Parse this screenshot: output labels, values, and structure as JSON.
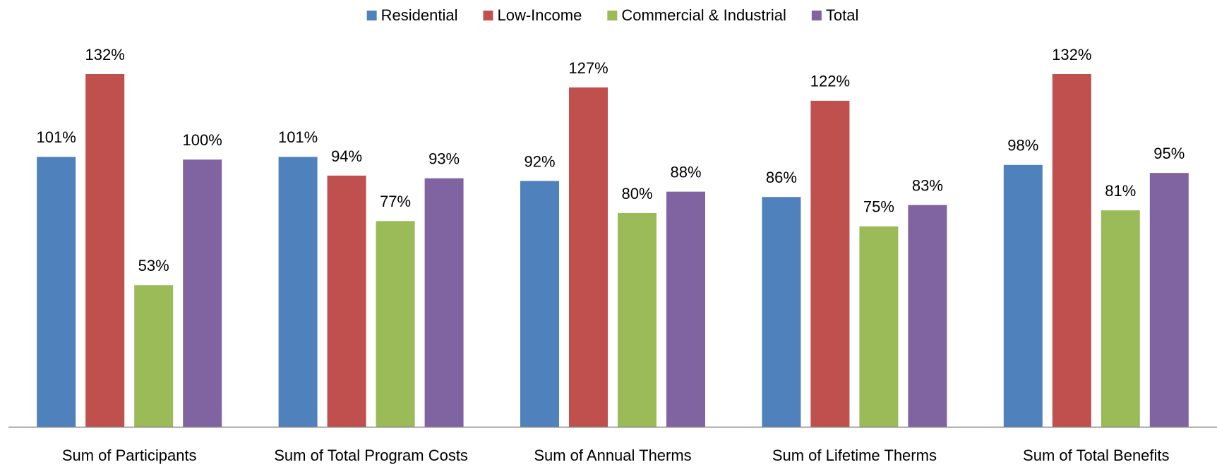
{
  "chart_data": {
    "type": "bar",
    "categories": [
      "Sum of Participants",
      "Sum of Total Program Costs",
      "Sum of Annual Therms",
      "Sum of Lifetime Therms",
      "Sum of Total Benefits"
    ],
    "series": [
      {
        "name": "Residential",
        "color": "#4f81bd",
        "values": [
          101,
          101,
          92,
          86,
          98
        ],
        "value_labels": [
          "101%",
          "101%",
          "92%",
          "86%",
          "98%"
        ]
      },
      {
        "name": "Low-Income",
        "color": "#c0504d",
        "values": [
          132,
          94,
          127,
          122,
          132
        ],
        "value_labels": [
          "132%",
          "94%",
          "127%",
          "122%",
          "132%"
        ]
      },
      {
        "name": "Commercial & Industrial",
        "color": "#9bbb59",
        "values": [
          53,
          77,
          80,
          75,
          81
        ],
        "value_labels": [
          "53%",
          "77%",
          "80%",
          "75%",
          "81%"
        ]
      },
      {
        "name": "Total",
        "color": "#8064a2",
        "values": [
          100,
          93,
          88,
          83,
          95
        ],
        "value_labels": [
          "100%",
          "93%",
          "88%",
          "83%",
          "95%"
        ]
      }
    ],
    "legend": "top"
  }
}
